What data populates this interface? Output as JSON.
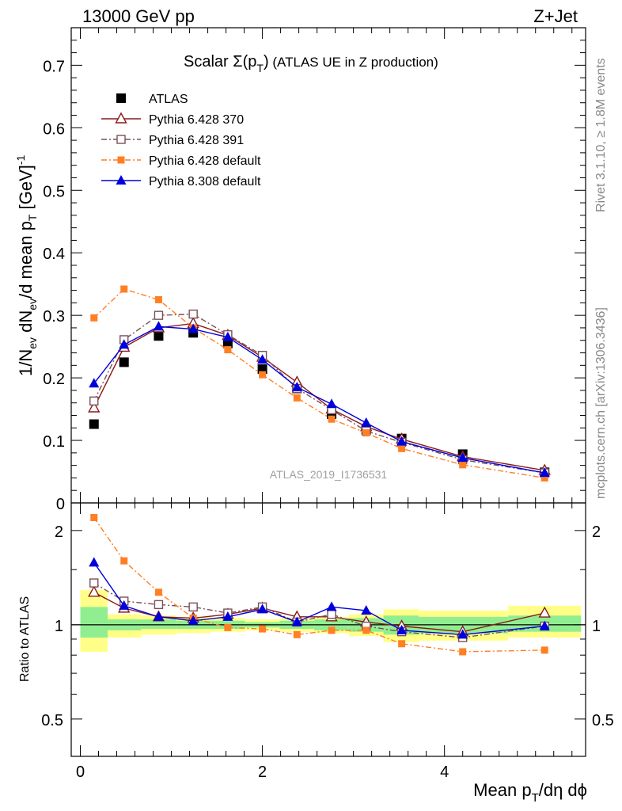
{
  "header": {
    "left": "13000 GeV pp",
    "right": "Z+Jet"
  },
  "title": {
    "main": "Scalar Σ(p",
    "sub": "T",
    "close": ")",
    "rest": " (ATLAS UE in Z production)"
  },
  "analysis_id": "ATLAS_2019_I1736531",
  "side_labels": {
    "rivet": "Rivet 3.1.10, ≥ 1.8M events",
    "mcplots": "mcplots.cern.ch [arXiv:1306.3436]"
  },
  "ylabel_main": {
    "a": "1/N",
    "a_sub": "ev",
    "b": " dN",
    "b_sub": "ev",
    "c": "/d mean p",
    "c_sub": "T",
    "d": " [GeV]",
    "d_sup": "-1"
  },
  "ylabel_ratio": "Ratio to ATLAS",
  "xlabel": {
    "a": "Mean p",
    "a_sub": "T",
    "b": "/dη dϕ"
  },
  "colors": {
    "atlas": "#000000",
    "p370": "#8b1a1a",
    "p391": "#7a5058",
    "p6def": "#ff7f24",
    "p8def": "#0000dd",
    "band_inner": "#90ee90",
    "band_outer": "#ffff88"
  },
  "chart_data": [
    {
      "type": "line",
      "panel": "main",
      "xlim": [
        -0.1,
        5.55
      ],
      "ylim": [
        0,
        0.76
      ],
      "yticks": [
        0,
        0.1,
        0.2,
        0.3,
        0.4,
        0.5,
        0.6,
        0.7
      ],
      "ytick_labels": [
        "0",
        "0.1",
        "0.2",
        "0.3",
        "0.4",
        "0.5",
        "0.6",
        "0.7"
      ],
      "legend_position": "top-left",
      "x": [
        0.15,
        0.48,
        0.86,
        1.24,
        1.62,
        2.0,
        2.38,
        2.76,
        3.14,
        3.53,
        4.2,
        5.1
      ],
      "series": [
        {
          "name": "ATLAS",
          "key": "atlas",
          "marker": "square-filled",
          "line": "none",
          "values": [
            0.126,
            0.225,
            0.267,
            0.272,
            0.255,
            0.214,
            0.183,
            0.142,
            0.117,
            0.103,
            0.078,
            0.049
          ]
        },
        {
          "name": "Pythia 6.428 370",
          "key": "p370",
          "marker": "triangle-open",
          "line": "solid",
          "values": [
            0.152,
            0.249,
            0.28,
            0.287,
            0.268,
            0.233,
            0.193,
            0.15,
            0.122,
            0.102,
            0.074,
            0.052
          ]
        },
        {
          "name": "Pythia 6.428 391",
          "key": "p391",
          "marker": "square-open",
          "line": "dashdot",
          "values": [
            0.163,
            0.261,
            0.3,
            0.302,
            0.269,
            0.236,
            0.183,
            0.149,
            0.115,
            0.097,
            0.069,
            0.048
          ]
        },
        {
          "name": "Pythia 6.428 default",
          "key": "p6def",
          "marker": "square-filled-small",
          "line": "dashdot",
          "values": [
            0.296,
            0.342,
            0.325,
            0.28,
            0.245,
            0.205,
            0.168,
            0.134,
            0.112,
            0.087,
            0.061,
            0.04
          ]
        },
        {
          "name": "Pythia 8.308 default",
          "key": "p8def",
          "marker": "triangle-filled",
          "line": "solid",
          "values": [
            0.191,
            0.253,
            0.282,
            0.278,
            0.265,
            0.229,
            0.185,
            0.158,
            0.128,
            0.098,
            0.072,
            0.048
          ]
        }
      ]
    },
    {
      "type": "line",
      "panel": "ratio",
      "xlim": [
        -0.1,
        5.55
      ],
      "ylim": [
        0.38,
        2.45
      ],
      "scale": "log",
      "yticks": [
        0.5,
        1,
        2
      ],
      "ytick_labels": [
        "0.5",
        "1",
        "2"
      ],
      "xticks": [
        0,
        2,
        4
      ],
      "xtick_labels": [
        "0",
        "2",
        "4"
      ],
      "x": [
        0.15,
        0.48,
        0.86,
        1.24,
        1.62,
        2.0,
        2.38,
        2.76,
        3.14,
        3.53,
        4.2,
        5.1
      ],
      "band_edges": [
        0.0,
        0.3,
        0.67,
        1.05,
        1.43,
        1.81,
        2.19,
        2.57,
        2.95,
        3.33,
        3.72,
        4.7,
        5.5
      ],
      "band_inner": [
        [
          0.91,
          1.14
        ],
        [
          0.96,
          1.04
        ],
        [
          0.97,
          1.04
        ],
        [
          0.97,
          1.03
        ],
        [
          0.97,
          1.03
        ],
        [
          0.98,
          1.02
        ],
        [
          0.97,
          1.03
        ],
        [
          0.96,
          1.04
        ],
        [
          0.95,
          1.05
        ],
        [
          0.93,
          1.07
        ],
        [
          0.94,
          1.06
        ],
        [
          0.95,
          1.07
        ]
      ],
      "band_outer": [
        [
          0.82,
          1.29
        ],
        [
          0.91,
          1.08
        ],
        [
          0.93,
          1.07
        ],
        [
          0.94,
          1.06
        ],
        [
          0.95,
          1.05
        ],
        [
          0.96,
          1.04
        ],
        [
          0.95,
          1.05
        ],
        [
          0.94,
          1.06
        ],
        [
          0.92,
          1.08
        ],
        [
          0.88,
          1.12
        ],
        [
          0.89,
          1.11
        ],
        [
          0.91,
          1.15
        ]
      ],
      "series": [
        {
          "name": "Pythia 6.428 370",
          "key": "p370",
          "marker": "triangle-open",
          "line": "solid",
          "values": [
            1.27,
            1.13,
            1.06,
            1.05,
            1.08,
            1.13,
            1.06,
            1.06,
            1.02,
            0.99,
            0.95,
            1.09
          ]
        },
        {
          "name": "Pythia 6.428 391",
          "key": "p391",
          "marker": "square-open",
          "line": "dashdot",
          "values": [
            1.36,
            1.19,
            1.16,
            1.14,
            1.09,
            1.14,
            1.02,
            1.08,
            0.99,
            0.95,
            0.91,
            0.99
          ]
        },
        {
          "name": "Pythia 6.428 default",
          "key": "p6def",
          "marker": "square-filled-small",
          "line": "dashdot",
          "values": [
            2.2,
            1.6,
            1.27,
            1.05,
            0.98,
            0.97,
            0.93,
            0.96,
            0.96,
            0.87,
            0.82,
            0.83
          ]
        },
        {
          "name": "Pythia 8.308 default",
          "key": "p8def",
          "marker": "triangle-filled",
          "line": "solid",
          "values": [
            1.58,
            1.15,
            1.06,
            1.03,
            1.06,
            1.12,
            1.02,
            1.14,
            1.11,
            0.96,
            0.93,
            0.99
          ]
        }
      ]
    }
  ]
}
